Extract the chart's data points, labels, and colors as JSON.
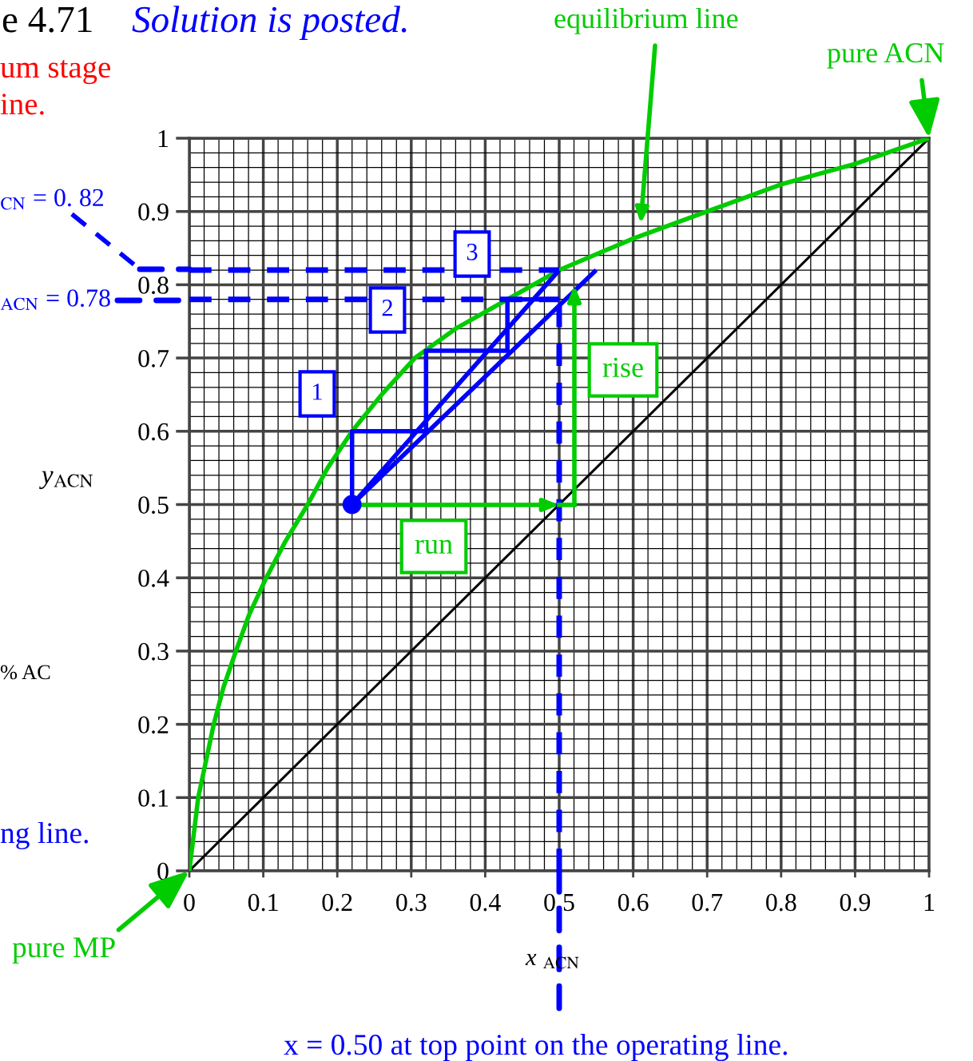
{
  "chart_data": {
    "type": "line",
    "title": "e 4.71",
    "subtitle": "Solution is posted.",
    "xlabel": "x $_{ACN}$",
    "ylabel": "y$_{ACN}$",
    "xlim": [
      0,
      1
    ],
    "ylim": [
      0,
      1
    ],
    "xticks": [
      0,
      0.1,
      0.2,
      0.3,
      0.4,
      0.5,
      0.6,
      0.7,
      0.8,
      0.9,
      1
    ],
    "yticks": [
      0,
      0.1,
      0.2,
      0.3,
      0.4,
      0.5,
      0.6,
      0.7,
      0.8,
      0.9,
      1
    ],
    "grid": true,
    "legend": false,
    "series": [
      {
        "color": "#000000",
        "x": [
          0,
          1
        ],
        "values": [
          0,
          1
        ]
      },
      {
        "color": "#00cc00",
        "x": [
          0,
          0.012,
          0.033,
          0.046,
          0.063,
          0.081,
          0.104,
          0.13,
          0.16,
          0.187,
          0.22,
          0.26,
          0.305,
          0.36,
          0.43,
          0.5,
          0.6,
          0.7,
          0.8,
          0.9,
          1
        ],
        "values": [
          0,
          0.1,
          0.2,
          0.25,
          0.3,
          0.35,
          0.4,
          0.45,
          0.5,
          0.55,
          0.6,
          0.65,
          0.7,
          0.74,
          0.78,
          0.82,
          0.863,
          0.9,
          0.937,
          0.965,
          1
        ]
      },
      {
        "color": "#0000ff",
        "line_style": "dashed",
        "x": [
          0,
          0.5
        ],
        "values": [
          0.82,
          0.82
        ]
      },
      {
        "color": "#0000ff",
        "line_style": "dashed",
        "x": [
          0,
          0.5
        ],
        "values": [
          0.78,
          0.78
        ]
      },
      {
        "color": "#0000ff",
        "line_style": "dashed",
        "x": [
          0.5,
          0.5
        ],
        "values": [
          0,
          0.78
        ]
      },
      {
        "color": "#0000ff",
        "x": [
          0.22,
          0.22,
          0.32,
          0.32,
          0.43,
          0.43,
          0.5
        ],
        "values": [
          0.5,
          0.6,
          0.6,
          0.71,
          0.71,
          0.78,
          0.78
        ]
      },
      {
        "color": "#0000ff",
        "x": [
          0.22,
          0.5
        ],
        "values": [
          0.5,
          0.82
        ]
      },
      {
        "color": "#0000ff",
        "x": [
          0.22,
          0.55
        ],
        "values": [
          0.5,
          0.82
        ]
      },
      {
        "type": "scatter",
        "color": "#0000ff",
        "marker": "circle",
        "x": [
          0.22
        ],
        "values": [
          0.5
        ]
      }
    ],
    "annotations": [
      "um stage\nine.",
      "$_{CN}$ = 0. 82",
      "$_{ACN}$ = 0.78",
      "% AC",
      "ng line.",
      {
        "text": "pure MP",
        "x": 0,
        "y": 0
      },
      {
        "text": "pure ACN",
        "x": 1,
        "y": 1
      },
      "equilibrium line",
      "x = 0.50 at top point on the operating line.",
      "1",
      "2",
      "3",
      "rise",
      "run"
    ]
  }
}
